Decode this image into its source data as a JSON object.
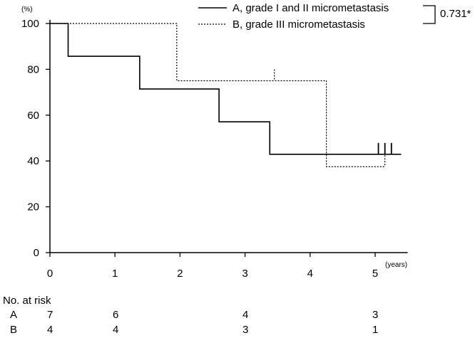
{
  "chart_data": {
    "type": "line",
    "y_unit": "(%)",
    "x_unit": "(years)",
    "xlim": [
      0,
      5.5
    ],
    "ylim": [
      0,
      100
    ],
    "xticks": [
      "0",
      "1",
      "2",
      "3",
      "4",
      "5"
    ],
    "yticks": [
      "0",
      "20",
      "40",
      "60",
      "80",
      "100"
    ],
    "series": [
      {
        "name": "A, grade I and II micrometastasis",
        "style": "solid",
        "step_x": [
          0,
          0.28,
          1.38,
          2.6,
          3.38,
          5.4
        ],
        "step_y": [
          100,
          85.7,
          71.4,
          57.1,
          42.9,
          42.9
        ],
        "censored_x": [
          5.05,
          5.15,
          5.25
        ],
        "censored_y": 42.9
      },
      {
        "name": "B, grade III micrometastasis",
        "style": "dotted",
        "step_x": [
          0,
          1.95,
          4.25,
          5.15
        ],
        "step_y": [
          100,
          75,
          37.5,
          37.5
        ],
        "censored_x": [
          3.45,
          5.15
        ],
        "censored_y_values": [
          75,
          37.5
        ]
      }
    ],
    "p_value": "0.731*"
  },
  "risk_table": {
    "heading": "No. at risk",
    "rows": [
      {
        "label": "A",
        "values": [
          "7",
          "6",
          "4",
          "3"
        ]
      },
      {
        "label": "B",
        "values": [
          "4",
          "4",
          "3",
          "1"
        ]
      }
    ]
  }
}
